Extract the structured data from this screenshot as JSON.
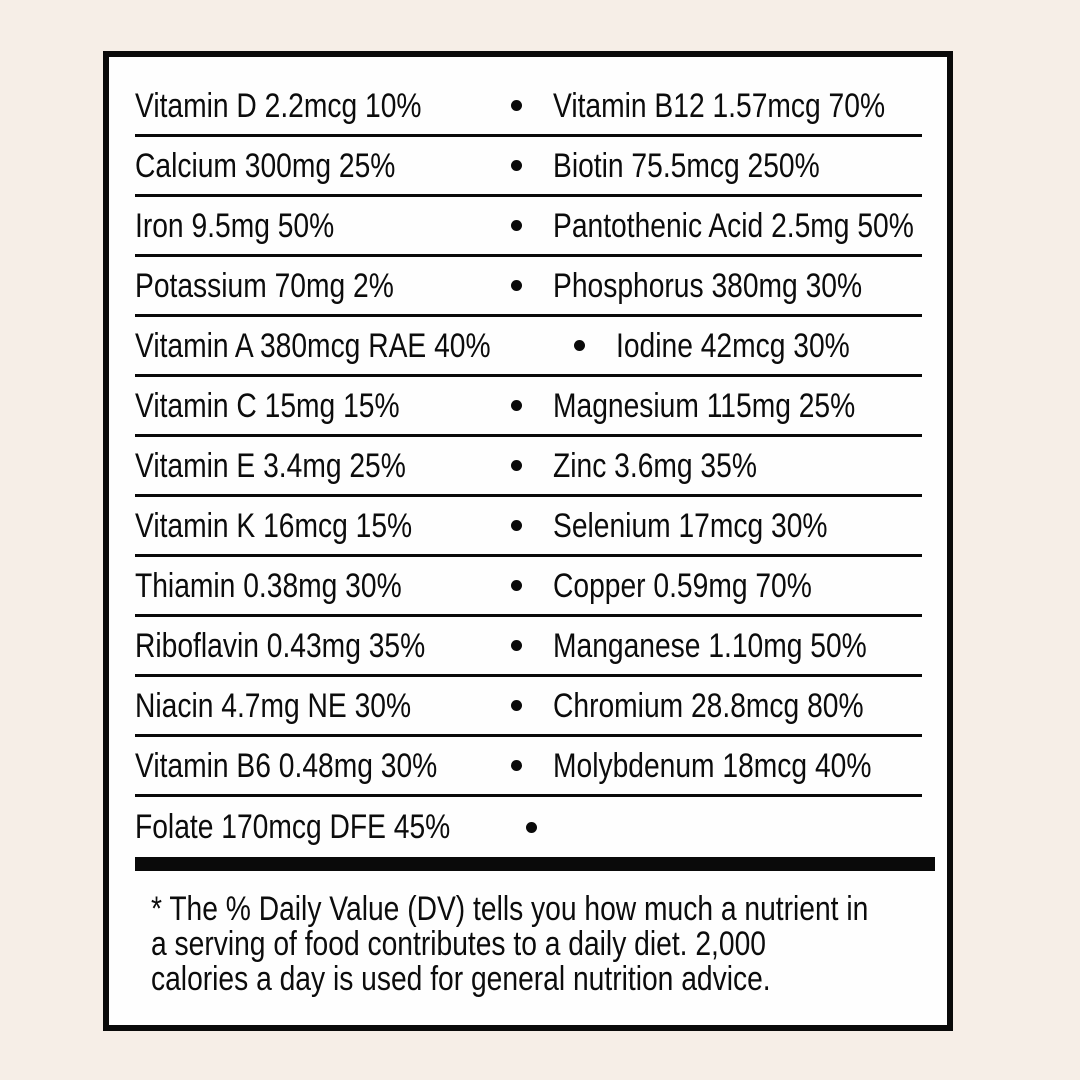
{
  "colors": {
    "page_background": "#f6eee7",
    "label_background": "#fefefe",
    "text": "#0c0c0c",
    "rule_lines": "#0a0a0a"
  },
  "label": {
    "bullet_glyph": "•",
    "rows": [
      {
        "left": "Vitamin D 2.2mcg 10%",
        "right": "Vitamin B12 1.57mcg 70%"
      },
      {
        "left": "Calcium 300mg 25%",
        "right": "Biotin 75.5mcg 250%"
      },
      {
        "left": "Iron 9.5mg 50%",
        "right": "Pantothenic Acid 2.5mg 50%"
      },
      {
        "left": "Potassium 70mg 2%",
        "right": "Phosphorus 380mg 30%"
      },
      {
        "left": "Vitamin A 380mcg RAE 40%",
        "right": "Iodine 42mcg 30%"
      },
      {
        "left": "Vitamin C 15mg 15%",
        "right": "Magnesium 115mg 25%"
      },
      {
        "left": "Vitamin E 3.4mg 25%",
        "right": "Zinc 3.6mg 35%"
      },
      {
        "left": "Vitamin K 16mcg 15%",
        "right": "Selenium 17mcg 30%"
      },
      {
        "left": "Thiamin 0.38mg 30%",
        "right": "Copper 0.59mg 70%"
      },
      {
        "left": "Riboflavin 0.43mg 35%",
        "right": "Manganese 1.10mg 50%"
      },
      {
        "left": "Niacin 4.7mg NE 30%",
        "right": "Chromium 28.8mcg 80%"
      },
      {
        "left": "Vitamin B6 0.48mg 30%",
        "right": "Molybdenum 18mcg 40%"
      },
      {
        "left": "Folate 170mcg DFE 45%",
        "right": ""
      }
    ],
    "footnote_lines": [
      "* The % Daily Value (DV) tells you how much a nutrient in",
      "a serving of food contributes to a daily diet. 2,000",
      "calories a day is used for general nutrition advice."
    ]
  }
}
